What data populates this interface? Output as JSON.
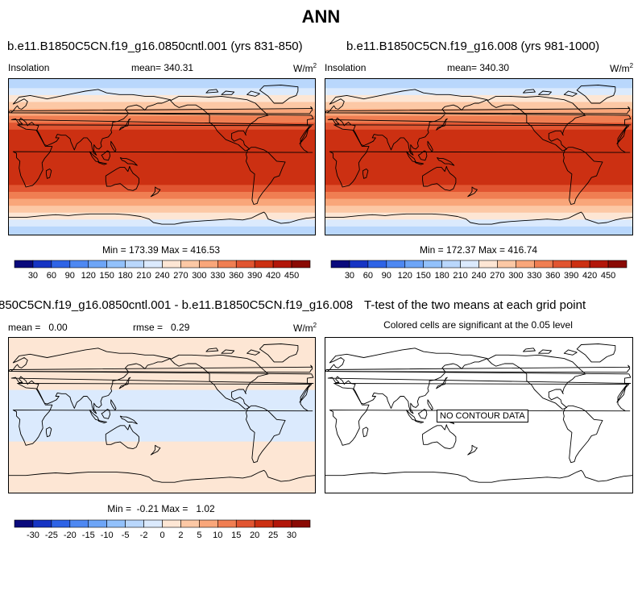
{
  "page_title": "ANN",
  "panels": [
    {
      "title": "b.e11.B1850C5CN.f19_g16.0850cntl.001 (yrs 831-850)",
      "left_label": "Insolation",
      "center_label": "mean= 340.31",
      "units": "W/m",
      "units_sup": "2",
      "stats": "Min = 173.39 Max = 416.53"
    },
    {
      "title": "b.e11.B1850C5CN.f19_g16.008 (yrs 981-1000)",
      "left_label": "Insolation",
      "center_label": "mean= 340.30",
      "units": "W/m",
      "units_sup": "2",
      "stats": "Min = 172.37 Max = 416.74"
    },
    {
      "title": "850C5CN.f19_g16.0850cntl.001 - b.e11.B1850C5CN.f19_g16.008",
      "left_label": "mean =   0.00",
      "center_label": "rmse =   0.29",
      "units": "W/m",
      "units_sup": "2",
      "stats": "Min =  -0.21 Max =   1.02"
    },
    {
      "title": "T-test of the two means at each grid point",
      "subtitle": "Colored cells are significant at the 0.05 level",
      "no_data": "NO CONTOUR DATA"
    }
  ],
  "colors": {
    "abs_scale": [
      "#0a0a7c",
      "#1634c4",
      "#2e63e6",
      "#4e88f2",
      "#6da5f7",
      "#92c1fb",
      "#b9d7fc",
      "#dbeafd",
      "#fde6d4",
      "#fcc8a5",
      "#f9a67a",
      "#f07e52",
      "#e15531",
      "#cc3012",
      "#b2160a",
      "#8a0a04"
    ],
    "diff_scale": [
      "#0a0a7c",
      "#1634c4",
      "#2e63e6",
      "#4e88f2",
      "#6da5f7",
      "#92c1fb",
      "#b9d7fc",
      "#dbeafd",
      "#fde6d4",
      "#fcc8a5",
      "#f9a67a",
      "#f07e52",
      "#e15531",
      "#cc3012",
      "#b2160a",
      "#8a0a04"
    ],
    "diff_bands": [
      "#fde6d4",
      "#dbeafd",
      "#fde6d4"
    ]
  },
  "chart_data": [
    {
      "type": "heatmap",
      "title": "b.e11.B1850C5CN.f19_g16.0850cntl.001 (yrs 831-850)",
      "variable": "Insolation",
      "units": "W/m2",
      "mean": 340.31,
      "min": 173.39,
      "max": 416.53,
      "zonal_bands_lat": [
        -90,
        -80,
        -72,
        -64,
        -56,
        -48,
        -40,
        -32,
        -24,
        24,
        32,
        40,
        48,
        56,
        64,
        72,
        80,
        90
      ],
      "zonal_band_values": [
        190,
        210,
        240,
        270,
        300,
        330,
        360,
        390,
        410,
        390,
        360,
        330,
        300,
        270,
        240,
        210,
        190
      ],
      "colorbar_levels": [
        30,
        60,
        90,
        120,
        150,
        180,
        210,
        240,
        270,
        300,
        330,
        360,
        390,
        420,
        450
      ]
    },
    {
      "type": "heatmap",
      "title": "b.e11.B1850C5CN.f19_g16.008 (yrs 981-1000)",
      "variable": "Insolation",
      "units": "W/m2",
      "mean": 340.3,
      "min": 172.37,
      "max": 416.74,
      "zonal_bands_lat": [
        -90,
        -80,
        -72,
        -64,
        -56,
        -48,
        -40,
        -32,
        -24,
        24,
        32,
        40,
        48,
        56,
        64,
        72,
        80,
        90
      ],
      "zonal_band_values": [
        190,
        210,
        240,
        270,
        300,
        330,
        360,
        390,
        410,
        390,
        360,
        330,
        300,
        270,
        240,
        210,
        190
      ],
      "colorbar_levels": [
        30,
        60,
        90,
        120,
        150,
        180,
        210,
        240,
        270,
        300,
        330,
        360,
        390,
        420,
        450
      ]
    },
    {
      "type": "heatmap",
      "title": "850C5CN.f19_g16.0850cntl.001 - b.e11.B1850C5CN.f19_g16.008",
      "units": "W/m2",
      "mean": 0.0,
      "rmse": 0.29,
      "min": -0.21,
      "max": 1.02,
      "zonal_bands_lat": [
        -90,
        -30,
        30,
        90
      ],
      "zonal_band_values": [
        1,
        -1,
        1
      ],
      "colorbar_levels": [
        -30,
        -25,
        -20,
        -15,
        -10,
        -5,
        -2,
        0,
        2,
        5,
        10,
        15,
        20,
        25,
        30
      ]
    },
    {
      "type": "heatmap",
      "title": "T-test of the two means at each grid point",
      "subtitle": "Colored cells are significant at the 0.05 level",
      "note": "NO CONTOUR DATA"
    }
  ]
}
